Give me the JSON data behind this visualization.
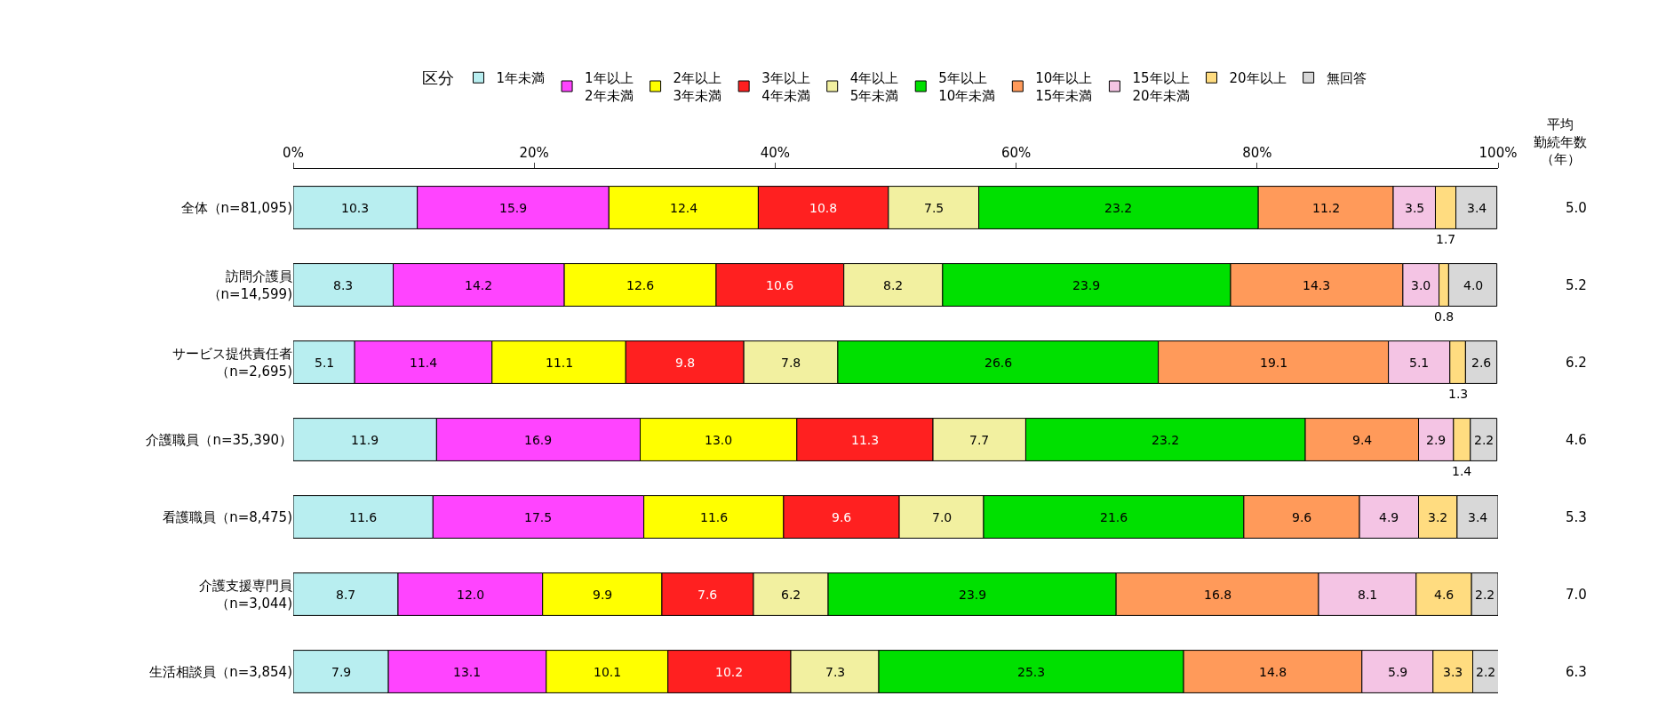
{
  "chart_data": {
    "type": "bar",
    "orientation": "horizontal",
    "stacked": true,
    "legend": "top",
    "legend_title": "区分",
    "categories": [
      "全体（n=81,095)",
      "訪問介護員（n=14,599)",
      "サービス提供責任者（n=2,695)",
      "介護職員（n=35,390）",
      "看護職員（n=8,475)",
      "介護支援専門員（n=3,044)",
      "生活相談員（n=3,854)"
    ],
    "xlim": [
      0,
      100
    ],
    "xticks": [
      {
        "value": 0,
        "label": "0%"
      },
      {
        "value": 20,
        "label": "20%"
      },
      {
        "value": 40,
        "label": "40%"
      },
      {
        "value": 60,
        "label": "60%"
      },
      {
        "value": 80,
        "label": "80%"
      },
      {
        "value": 100,
        "label": "100%"
      }
    ],
    "series": [
      {
        "name": "1年未満",
        "color": "#b8eef0",
        "values": [
          10.3,
          8.3,
          5.1,
          11.9,
          11.6,
          8.7,
          7.9
        ],
        "value_labels": [
          "10.3",
          "8.3",
          "5.1",
          "11.9",
          "11.6",
          "8.7",
          "7.9"
        ]
      },
      {
        "name": "1年以上\n2年未満",
        "color": "#ff44ff",
        "values": [
          15.9,
          14.2,
          11.4,
          16.9,
          17.5,
          12.0,
          13.1
        ],
        "value_labels": [
          "15.9",
          "14.2",
          "11.4",
          "16.9",
          "17.5",
          "12.0",
          "13.1"
        ]
      },
      {
        "name": "2年以上\n3年未満",
        "color": "#ffff00",
        "values": [
          12.4,
          12.6,
          11.1,
          13.0,
          11.6,
          9.9,
          10.1
        ],
        "value_labels": [
          "12.4",
          "12.6",
          "11.1",
          "13.0",
          "11.6",
          "9.9",
          "10.1"
        ]
      },
      {
        "name": "3年以上\n4年未満",
        "color": "#ff2020",
        "values": [
          10.8,
          10.6,
          9.8,
          11.3,
          9.6,
          7.6,
          10.2
        ],
        "value_labels": [
          "10.8",
          "10.6",
          "9.8",
          "11.3",
          "9.6",
          "7.6",
          "10.2"
        ]
      },
      {
        "name": "4年以上\n5年未満",
        "color": "#f2f0a0",
        "values": [
          7.5,
          8.2,
          7.8,
          7.7,
          7.0,
          6.2,
          7.3
        ],
        "value_labels": [
          "7.5",
          "8.2",
          "7.8",
          "7.7",
          "7.0",
          "6.2",
          "7.3"
        ]
      },
      {
        "name": "5年以上\n10年未満",
        "color": "#00e000",
        "values": [
          23.2,
          23.9,
          26.6,
          23.2,
          21.6,
          23.9,
          25.3
        ],
        "value_labels": [
          "23.2",
          "23.9",
          "26.6",
          "23.2",
          "21.6",
          "23.9",
          "25.3"
        ]
      },
      {
        "name": "10年以上\n15年未満",
        "color": "#ff9a5a",
        "values": [
          11.2,
          14.3,
          19.1,
          9.4,
          9.6,
          16.8,
          14.8
        ],
        "value_labels": [
          "11.2",
          "14.3",
          "19.1",
          "9.4",
          "9.6",
          "16.8",
          "14.8"
        ]
      },
      {
        "name": "15年以上\n20年未満",
        "color": "#f4c4e4",
        "values": [
          3.5,
          3.0,
          5.1,
          2.9,
          4.9,
          8.1,
          5.9
        ],
        "value_labels": [
          "3.5",
          "3.0",
          "5.1",
          "2.9",
          "4.9",
          "8.1",
          "5.9"
        ]
      },
      {
        "name": "20年以上",
        "color": "#ffdc80",
        "values": [
          1.7,
          0.8,
          1.3,
          1.4,
          3.2,
          4.6,
          3.3
        ],
        "value_labels": [
          "1.7",
          "0.8",
          "1.3",
          "1.4",
          "3.2",
          "4.6",
          "3.3"
        ]
      },
      {
        "name": "無回答",
        "color": "#d8d8d8",
        "values": [
          3.4,
          4.0,
          2.6,
          2.2,
          3.4,
          2.2,
          2.2
        ],
        "value_labels": [
          "3.4",
          "4.0",
          "2.6",
          "2.2",
          "3.4",
          "2.2",
          "2.2"
        ]
      }
    ],
    "annotations": [
      "平均勤続年数（年）",
      "5.0",
      "5.2",
      "6.2",
      "4.6",
      "5.3",
      "7.0",
      "6.3"
    ]
  }
}
